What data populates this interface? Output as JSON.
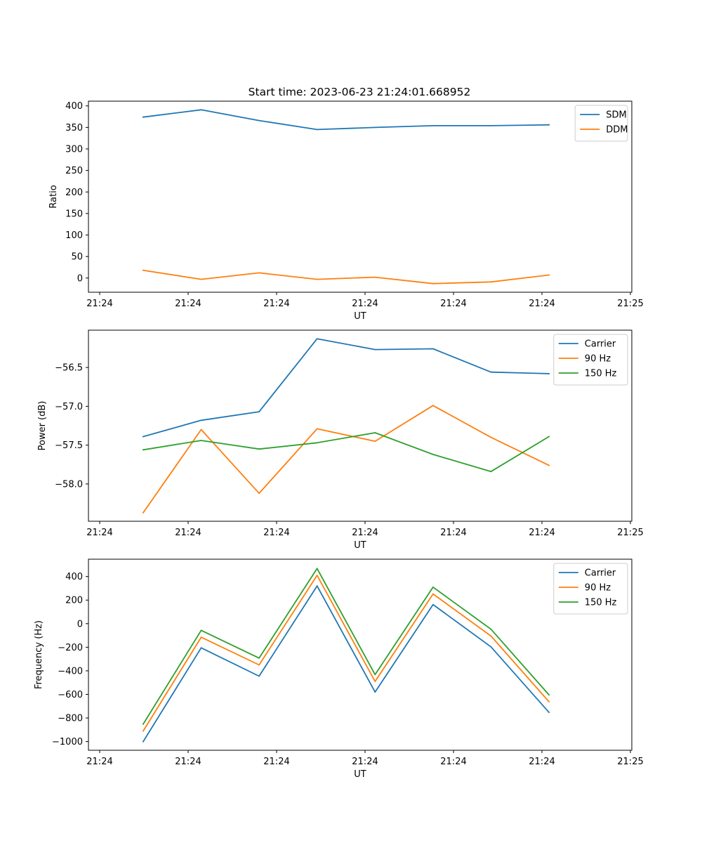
{
  "figure": {
    "title": "Start time: 2023-06-23 21:24:01.668952"
  },
  "chart_data": [
    {
      "type": "line",
      "xlabel": "UT",
      "ylabel": "Ratio",
      "x_tick_labels": [
        "21:24",
        "21:24",
        "21:24",
        "21:24",
        "21:24",
        "21:24",
        "21:25"
      ],
      "x": [
        1,
        2,
        3,
        4,
        5,
        6,
        7,
        8
      ],
      "ylim": [
        -33,
        411
      ],
      "y_ticks": [
        0,
        50,
        100,
        150,
        200,
        250,
        300,
        350,
        400
      ],
      "legend_position": "top-right",
      "series": [
        {
          "name": "SDM",
          "color": "#1f77b4",
          "values": [
            374,
            391,
            366,
            345,
            350,
            354,
            354,
            356
          ]
        },
        {
          "name": "DDM",
          "color": "#ff7f0e",
          "values": [
            18,
            -3,
            12,
            -3,
            2,
            -13,
            -9,
            7
          ]
        }
      ]
    },
    {
      "type": "line",
      "xlabel": "UT",
      "ylabel": "Power (dB)",
      "x_tick_labels": [
        "21:24",
        "21:24",
        "21:24",
        "21:24",
        "21:24",
        "21:24",
        "21:25"
      ],
      "x": [
        1,
        2,
        3,
        4,
        5,
        6,
        7,
        8
      ],
      "ylim": [
        -58.48,
        -56.02
      ],
      "y_ticks": [
        -58.0,
        -57.5,
        -57.0,
        -56.5
      ],
      "y_tick_labels": [
        "−58.0",
        "−57.5",
        "−57.0",
        "−56.5"
      ],
      "legend_position": "top-right",
      "series": [
        {
          "name": "Carrier",
          "color": "#1f77b4",
          "values": [
            -57.39,
            -57.18,
            -57.07,
            -56.13,
            -56.27,
            -56.26,
            -56.56,
            -56.58
          ]
        },
        {
          "name": "90 Hz",
          "color": "#ff7f0e",
          "values": [
            -58.37,
            -57.3,
            -58.12,
            -57.29,
            -57.45,
            -56.99,
            -57.4,
            -57.76
          ]
        },
        {
          "name": "150 Hz",
          "color": "#2ca02c",
          "values": [
            -57.56,
            -57.44,
            -57.55,
            -57.47,
            -57.34,
            -57.62,
            -57.84,
            -57.39
          ]
        }
      ]
    },
    {
      "type": "line",
      "xlabel": "UT",
      "ylabel": "Frequency (Hz)",
      "x_tick_labels": [
        "21:24",
        "21:24",
        "21:24",
        "21:24",
        "21:24",
        "21:24",
        "21:25"
      ],
      "x": [
        1,
        2,
        3,
        4,
        5,
        6,
        7,
        8
      ],
      "ylim": [
        -1074,
        547
      ],
      "y_ticks": [
        -1000,
        -800,
        -600,
        -400,
        -200,
        0,
        200,
        400
      ],
      "y_tick_labels": [
        "−1000",
        "−800",
        "−600",
        "−400",
        "−200",
        "0",
        "200",
        "400"
      ],
      "legend_position": "top-right",
      "series": [
        {
          "name": "Carrier",
          "color": "#1f77b4",
          "values": [
            -1000,
            -205,
            -445,
            320,
            -580,
            162,
            -197,
            -752
          ]
        },
        {
          "name": "90 Hz",
          "color": "#ff7f0e",
          "values": [
            -910,
            -115,
            -350,
            410,
            -490,
            252,
            -105,
            -662
          ]
        },
        {
          "name": "150 Hz",
          "color": "#2ca02c",
          "values": [
            -852,
            -57,
            -292,
            468,
            -432,
            310,
            -47,
            -604
          ]
        }
      ]
    }
  ]
}
